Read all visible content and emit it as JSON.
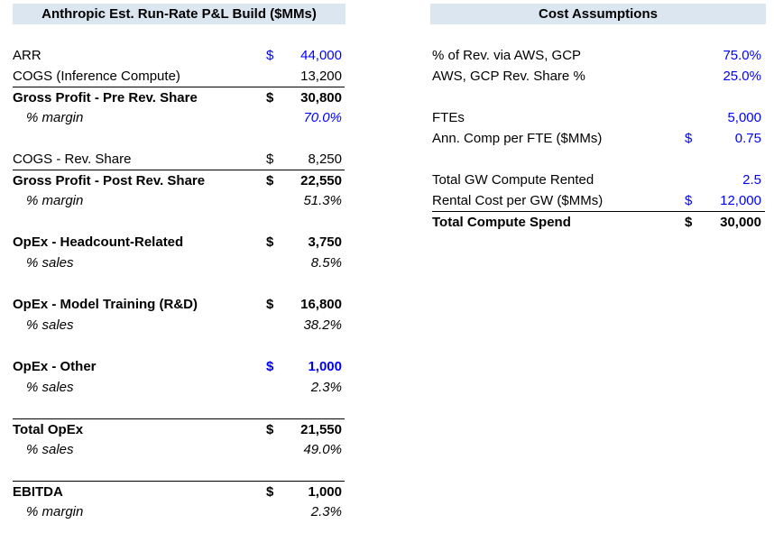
{
  "pnl": {
    "title": "Anthropic Est. Run-Rate P&L Build ($MMs)",
    "rows": [
      {
        "label": "ARR",
        "currency": "$",
        "value": "44,000"
      },
      {
        "label": "COGS (Inference Compute)",
        "currency": "",
        "value": "13,200"
      },
      {
        "label": "Gross Profit - Pre Rev. Share",
        "currency": "$",
        "value": "30,800"
      },
      {
        "label": "% margin",
        "currency": "",
        "value": "70.0%"
      },
      {
        "label": "COGS - Rev. Share",
        "currency": "$",
        "value": "8,250"
      },
      {
        "label": "Gross Profit - Post Rev. Share",
        "currency": "$",
        "value": "22,550"
      },
      {
        "label": "% margin",
        "currency": "",
        "value": "51.3%"
      },
      {
        "label": "OpEx - Headcount-Related",
        "currency": "$",
        "value": "3,750"
      },
      {
        "label": "% sales",
        "currency": "",
        "value": "8.5%"
      },
      {
        "label": "OpEx - Model Training (R&D)",
        "currency": "$",
        "value": "16,800"
      },
      {
        "label": "% sales",
        "currency": "",
        "value": "38.2%"
      },
      {
        "label": "OpEx - Other",
        "currency": "$",
        "value": "1,000"
      },
      {
        "label": "% sales",
        "currency": "",
        "value": "2.3%"
      },
      {
        "label": "Total OpEx",
        "currency": "$",
        "value": "21,550"
      },
      {
        "label": "% sales",
        "currency": "",
        "value": "49.0%"
      },
      {
        "label": "EBITDA",
        "currency": "$",
        "value": "1,000"
      },
      {
        "label": "% margin",
        "currency": "",
        "value": "2.3%"
      }
    ]
  },
  "costs": {
    "title": "Cost Assumptions",
    "rows": [
      {
        "label": "% of Rev. via AWS, GCP",
        "currency": "",
        "value": "75.0%"
      },
      {
        "label": "AWS, GCP Rev. Share %",
        "currency": "",
        "value": "25.0%"
      },
      {
        "label": "FTEs",
        "currency": "",
        "value": "5,000"
      },
      {
        "label": "Ann. Comp per FTE ($MMs)",
        "currency": "$",
        "value": "0.75"
      },
      {
        "label": "Total GW Compute Rented",
        "currency": "",
        "value": "2.5"
      },
      {
        "label": "Rental Cost per GW ($MMs)",
        "currency": "$",
        "value": "12,000"
      },
      {
        "label": "Total Compute Spend",
        "currency": "$",
        "value": "30,000"
      }
    ]
  },
  "colors": {
    "header_fill": "#dce6f1",
    "input_blue": "#0000ff"
  }
}
